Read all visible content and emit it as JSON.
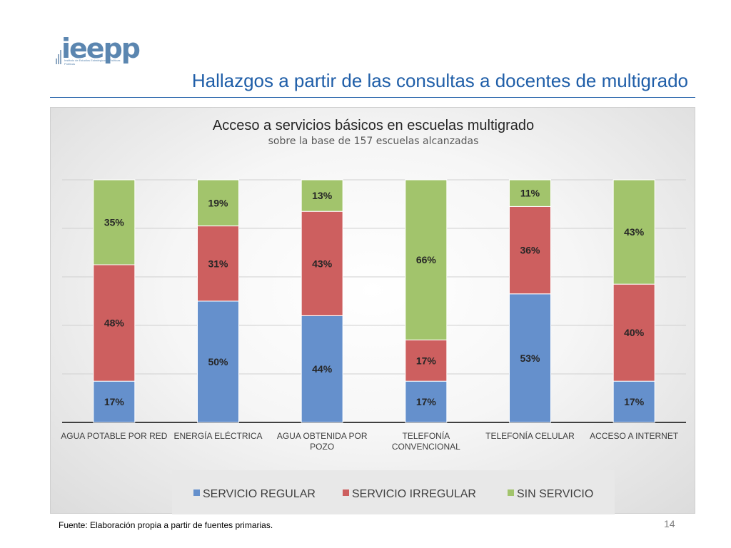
{
  "logo": {
    "word": "ieepp",
    "sub": "Instituto de Estudios Estratégicos y Políticas Públicas"
  },
  "slide": {
    "title": "Hallazgos a partir de las consultas a docentes de multigrado",
    "source_note": "Fuente: Elaboración propia a partir de fuentes primarias.",
    "page_number": "14"
  },
  "colors": {
    "title": "#1f5ea8",
    "regular": "#6590cc",
    "irregular": "#cd5f5f",
    "sin": "#a2c46c"
  },
  "chart_data": {
    "type": "bar",
    "stacked": true,
    "percent_stacked": true,
    "title": "Acceso a servicios básicos en escuelas multigrado",
    "subtitle": "sobre la base de 157 escuelas alcanzadas",
    "categories": [
      "AGUA POTABLE POR RED",
      "ENERGÍA ELÉCTRICA",
      "AGUA OBTENIDA POR POZO",
      "TELEFONÍA CONVENCIONAL",
      "TELEFONÍA CELULAR",
      "ACCESO A INTERNET"
    ],
    "series": [
      {
        "name": "SERVICIO REGULAR",
        "color": "#6590cc",
        "values": [
          17,
          50,
          44,
          17,
          53,
          17
        ]
      },
      {
        "name": "SERVICIO IRREGULAR",
        "color": "#cd5f5f",
        "values": [
          48,
          31,
          43,
          17,
          36,
          40
        ]
      },
      {
        "name": "SIN SERVICIO",
        "color": "#a2c46c",
        "values": [
          35,
          19,
          13,
          66,
          11,
          43
        ]
      }
    ],
    "data_labels": [
      [
        "17%",
        "50%",
        "44%",
        "17%",
        "53%",
        "17%"
      ],
      [
        "48%",
        "31%",
        "43%",
        "17%",
        "36%",
        "40%"
      ],
      [
        "35%",
        "19%",
        "13%",
        "66%",
        "11%",
        "43%"
      ]
    ],
    "ylim": [
      0,
      100
    ],
    "grid": true,
    "legend": "bottom"
  }
}
